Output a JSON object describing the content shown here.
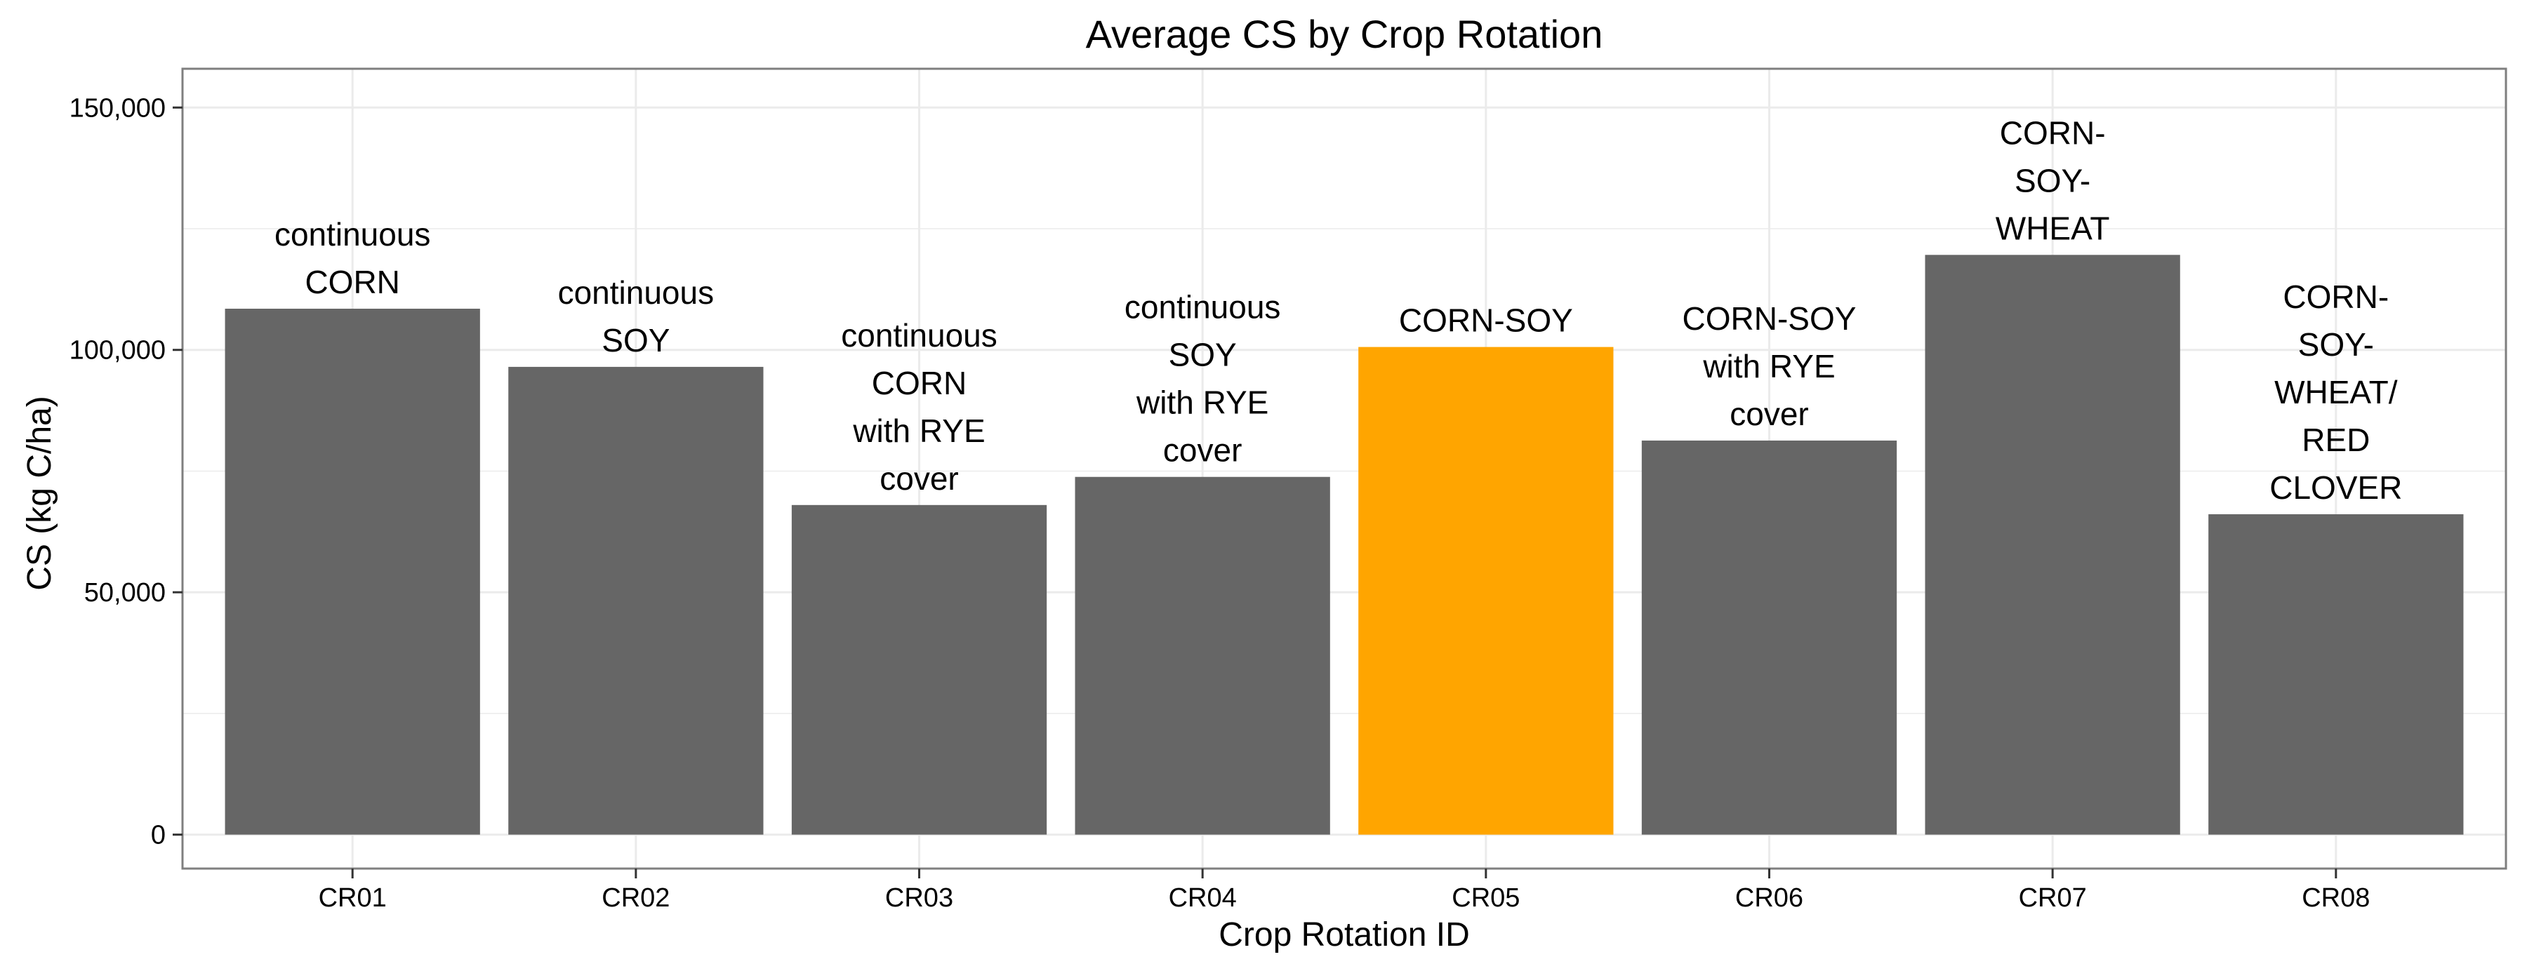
{
  "chart_data": {
    "type": "bar",
    "title": "Average CS by Crop Rotation",
    "xlabel": "Crop Rotation ID",
    "ylabel": "CS (kg C/ha)",
    "ylim": [
      -7000,
      158000
    ],
    "y_ticks": [
      0,
      50000,
      100000,
      150000
    ],
    "y_tick_labels": [
      "0",
      "50,000",
      "100,000",
      "150,000"
    ],
    "grid": true,
    "legend": "none",
    "categories": [
      "CR01",
      "CR02",
      "CR03",
      "CR04",
      "CR05",
      "CR06",
      "CR07",
      "CR08"
    ],
    "values": [
      108500,
      96500,
      68000,
      73800,
      100600,
      81300,
      119600,
      66100
    ],
    "bar_labels": [
      [
        "continuous",
        "CORN"
      ],
      [
        "continuous",
        "SOY"
      ],
      [
        "continuous",
        "CORN",
        "with RYE",
        "cover"
      ],
      [
        "continuous",
        "SOY",
        "with RYE",
        "cover"
      ],
      [
        "CORN-SOY"
      ],
      [
        "CORN-SOY",
        "with RYE",
        "cover"
      ],
      [
        "CORN-",
        "SOY-",
        "WHEAT"
      ],
      [
        "CORN-",
        "SOY-",
        "WHEAT/",
        "RED",
        "CLOVER"
      ]
    ],
    "colors": {
      "bar": "#666666",
      "highlight": "#FFA500",
      "grid": "#EBEBEB",
      "panel_border": "#7F7F7F",
      "axis_tick": "#333333"
    },
    "highlight_category": "CR05"
  }
}
